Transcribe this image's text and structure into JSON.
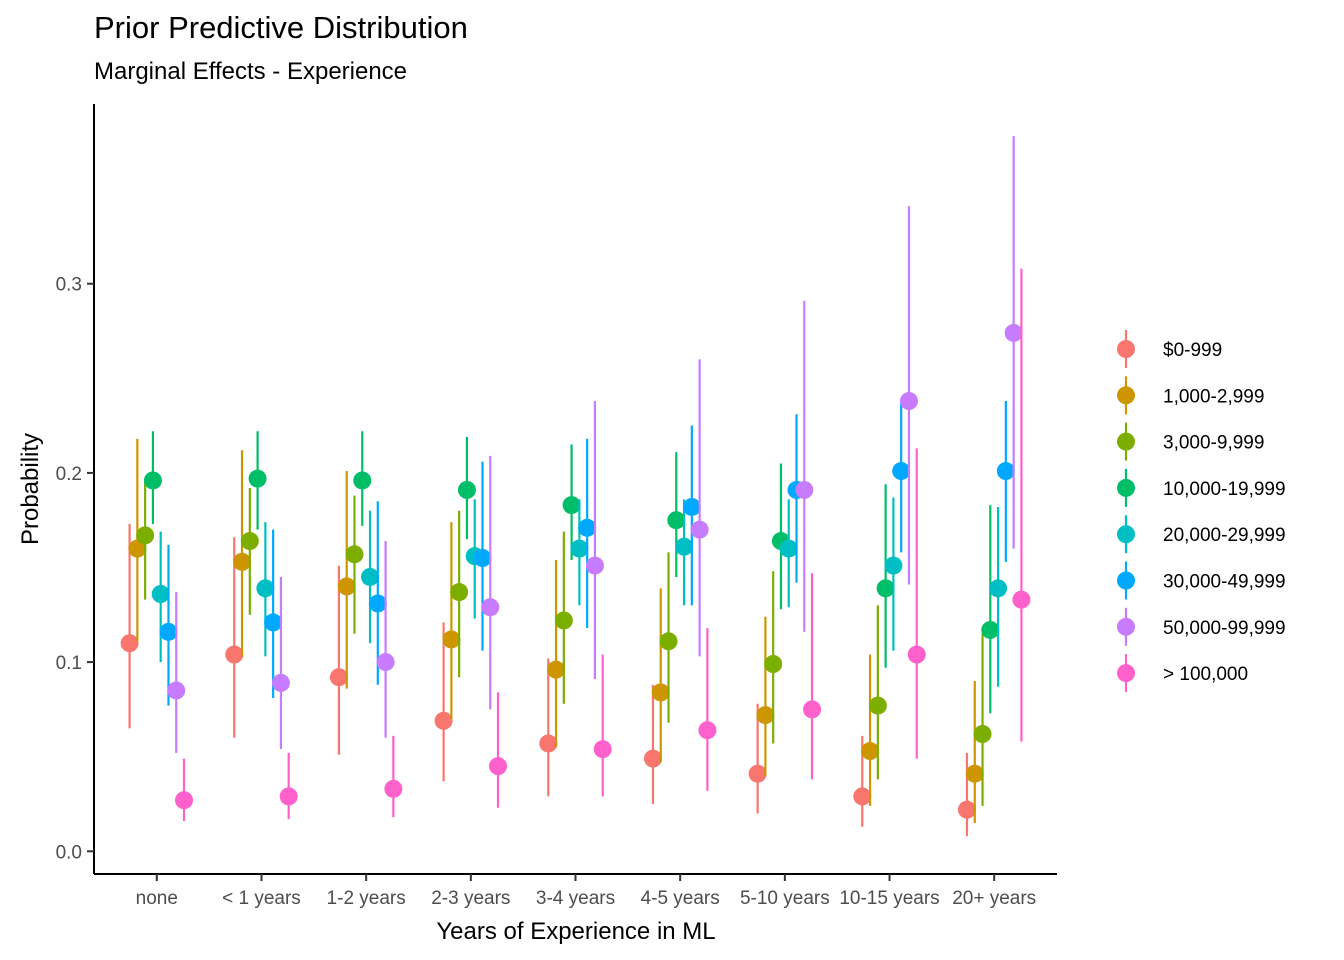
{
  "chart_data": {
    "type": "scatter",
    "title": "Prior Predictive Distribution",
    "subtitle": "Marginal Effects - Experience",
    "xlabel": "Years of Experience in ML",
    "ylabel": "Probability",
    "ylim": [
      -0.012,
      0.395
    ],
    "yticks": [
      0.0,
      0.1,
      0.2,
      0.3
    ],
    "ytick_labels": [
      "0.0",
      "0.1",
      "0.2",
      "0.3"
    ],
    "grid": false,
    "legend_position": "right",
    "categories": [
      "none",
      "< 1 years",
      "1-2 years",
      "2-3 years",
      "3-4 years",
      "4-5 years",
      "5-10 years",
      "10-15 years",
      "20+ years"
    ],
    "series": [
      {
        "name": "$0-999",
        "color": "#F8766D",
        "values": [
          0.11,
          0.104,
          0.092,
          0.069,
          0.057,
          0.049,
          0.041,
          0.029,
          0.022
        ],
        "lower": [
          0.065,
          0.06,
          0.051,
          0.037,
          0.029,
          0.025,
          0.02,
          0.013,
          0.008
        ],
        "upper": [
          0.173,
          0.166,
          0.151,
          0.121,
          0.102,
          0.088,
          0.078,
          0.061,
          0.052
        ]
      },
      {
        "name": "1,000-2,999",
        "color": "#CD9600",
        "values": [
          0.16,
          0.153,
          0.14,
          0.112,
          0.096,
          0.084,
          0.072,
          0.053,
          0.041
        ],
        "lower": [
          0.111,
          0.103,
          0.086,
          0.07,
          0.055,
          0.047,
          0.04,
          0.024,
          0.015
        ],
        "upper": [
          0.218,
          0.212,
          0.201,
          0.174,
          0.154,
          0.139,
          0.124,
          0.104,
          0.09
        ]
      },
      {
        "name": "3,000-9,999",
        "color": "#7CAE00",
        "values": [
          0.167,
          0.164,
          0.157,
          0.137,
          0.122,
          0.111,
          0.099,
          0.077,
          0.062
        ],
        "lower": [
          0.133,
          0.125,
          0.115,
          0.092,
          0.078,
          0.068,
          0.057,
          0.038,
          0.024
        ],
        "upper": [
          0.196,
          0.192,
          0.188,
          0.18,
          0.169,
          0.158,
          0.148,
          0.13,
          0.115
        ]
      },
      {
        "name": "10,000-19,999",
        "color": "#00BE67",
        "values": [
          0.196,
          0.197,
          0.196,
          0.191,
          0.183,
          0.175,
          0.164,
          0.139,
          0.117
        ],
        "lower": [
          0.173,
          0.17,
          0.172,
          0.165,
          0.154,
          0.145,
          0.128,
          0.097,
          0.073
        ],
        "upper": [
          0.222,
          0.222,
          0.222,
          0.219,
          0.215,
          0.211,
          0.205,
          0.194,
          0.183
        ]
      },
      {
        "name": "20,000-29,999",
        "color": "#00BFC4",
        "values": [
          0.136,
          0.139,
          0.145,
          0.156,
          0.16,
          0.161,
          0.16,
          0.151,
          0.139
        ],
        "lower": [
          0.1,
          0.103,
          0.11,
          0.123,
          0.13,
          0.13,
          0.129,
          0.106,
          0.087
        ],
        "upper": [
          0.169,
          0.174,
          0.18,
          0.186,
          0.186,
          0.186,
          0.186,
          0.187,
          0.182
        ]
      },
      {
        "name": "30,000-49,999",
        "color": "#00A9FF",
        "values": [
          0.116,
          0.121,
          0.131,
          0.155,
          0.171,
          0.182,
          0.191,
          0.201,
          0.201
        ],
        "lower": [
          0.077,
          0.081,
          0.088,
          0.106,
          0.118,
          0.13,
          0.142,
          0.158,
          0.153
        ],
        "upper": [
          0.162,
          0.17,
          0.185,
          0.206,
          0.218,
          0.225,
          0.231,
          0.237,
          0.238
        ]
      },
      {
        "name": "50,000-99,999",
        "color": "#C77CFF",
        "values": [
          0.085,
          0.089,
          0.1,
          0.129,
          0.151,
          0.17,
          0.191,
          0.238,
          0.274
        ],
        "lower": [
          0.052,
          0.054,
          0.06,
          0.075,
          0.091,
          0.103,
          0.116,
          0.141,
          0.16
        ],
        "upper": [
          0.137,
          0.145,
          0.164,
          0.209,
          0.238,
          0.26,
          0.291,
          0.341,
          0.378
        ]
      },
      {
        "name": "> 100,000",
        "color": "#FF61CC",
        "values": [
          0.027,
          0.029,
          0.033,
          0.045,
          0.054,
          0.064,
          0.075,
          0.104,
          0.133
        ],
        "lower": [
          0.016,
          0.017,
          0.018,
          0.023,
          0.029,
          0.032,
          0.038,
          0.049,
          0.058
        ],
        "upper": [
          0.049,
          0.052,
          0.061,
          0.084,
          0.104,
          0.118,
          0.147,
          0.213,
          0.308
        ]
      }
    ]
  }
}
